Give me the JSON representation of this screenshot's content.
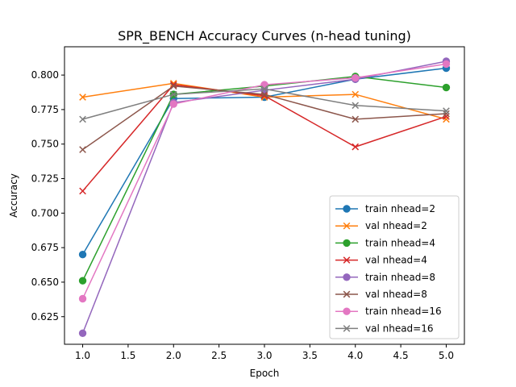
{
  "chart_data": {
    "type": "line",
    "title": "SPR_BENCH Accuracy Curves (n-head tuning)",
    "xlabel": "Epoch",
    "ylabel": "Accuracy",
    "xlim": [
      0.8,
      5.2
    ],
    "ylim": [
      0.605,
      0.8205
    ],
    "xticks": [
      1.0,
      1.5,
      2.0,
      2.5,
      3.0,
      3.5,
      4.0,
      4.5,
      5.0
    ],
    "xtick_labels": [
      "1.0",
      "1.5",
      "2.0",
      "2.5",
      "3.0",
      "3.5",
      "4.0",
      "4.5",
      "5.0"
    ],
    "yticks": [
      0.625,
      0.65,
      0.675,
      0.7,
      0.725,
      0.75,
      0.775,
      0.8
    ],
    "ytick_labels": [
      "0.625",
      "0.650",
      "0.675",
      "0.700",
      "0.725",
      "0.750",
      "0.775",
      "0.800"
    ],
    "grid": false,
    "legend_position": "lower-right",
    "x": [
      1,
      2,
      3,
      4,
      5
    ],
    "series": [
      {
        "name": "train nhead=2",
        "color": "#1f77b4",
        "marker": "circle",
        "values": [
          0.67,
          0.783,
          0.784,
          0.797,
          0.805
        ]
      },
      {
        "name": "val nhead=2",
        "color": "#ff7f0e",
        "marker": "x",
        "values": [
          0.784,
          0.794,
          0.784,
          0.786,
          0.768
        ]
      },
      {
        "name": "train nhead=4",
        "color": "#2ca02c",
        "marker": "circle",
        "values": [
          0.651,
          0.786,
          0.792,
          0.799,
          0.791
        ]
      },
      {
        "name": "val nhead=4",
        "color": "#d62728",
        "marker": "x",
        "values": [
          0.716,
          0.793,
          0.785,
          0.748,
          0.77
        ]
      },
      {
        "name": "train nhead=8",
        "color": "#9467bd",
        "marker": "circle",
        "values": [
          0.613,
          0.78,
          0.789,
          0.797,
          0.81
        ]
      },
      {
        "name": "val nhead=8",
        "color": "#8c564b",
        "marker": "x",
        "values": [
          0.746,
          0.792,
          0.786,
          0.768,
          0.772
        ]
      },
      {
        "name": "train nhead=16",
        "color": "#e377c2",
        "marker": "circle",
        "values": [
          0.638,
          0.779,
          0.793,
          0.798,
          0.808
        ]
      },
      {
        "name": "val nhead=16",
        "color": "#7f7f7f",
        "marker": "x",
        "values": [
          0.768,
          0.786,
          0.79,
          0.778,
          0.774
        ]
      }
    ]
  }
}
